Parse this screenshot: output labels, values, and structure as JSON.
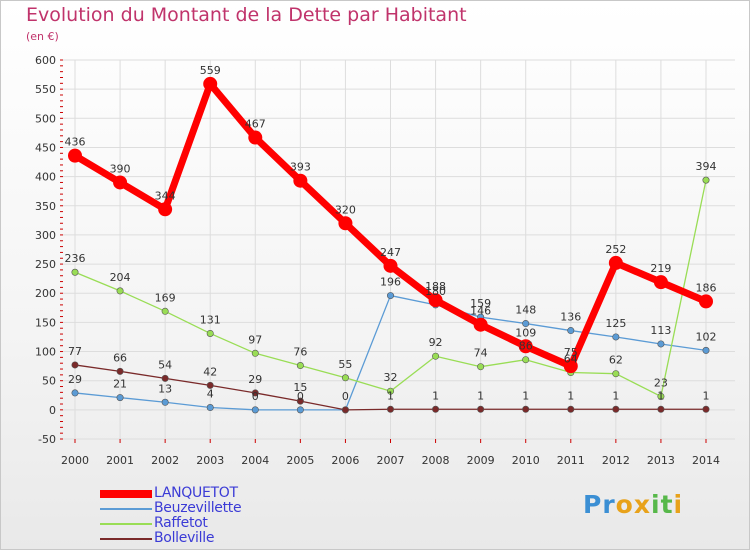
{
  "header": {
    "title": "Evolution du Montant de la Dette par Habitant",
    "subtitle": "(en €)"
  },
  "colors": {
    "title": "#c0336b",
    "legend_text": "#3b3bd6",
    "grid": "#dddddd",
    "axis_tick": "#cc0000"
  },
  "chart_data": {
    "type": "line",
    "title": "Evolution du Montant de la Dette par Habitant",
    "subtitle": "(en €)",
    "x": [
      "2000",
      "2001",
      "2002",
      "2003",
      "2004",
      "2005",
      "2006",
      "2007",
      "2008",
      "2009",
      "2010",
      "2011",
      "2012",
      "2013",
      "2014"
    ],
    "ylim": [
      -50,
      600
    ],
    "yticks": [
      -50,
      0,
      50,
      100,
      150,
      200,
      250,
      300,
      350,
      400,
      450,
      500,
      550,
      600
    ],
    "grid": true,
    "legend_position": "bottom-left",
    "series": [
      {
        "name": "LANQUETOT",
        "color": "#ff0000",
        "values": [
          436,
          390,
          344,
          559,
          467,
          393,
          320,
          247,
          188,
          146,
          109,
          75,
          252,
          219,
          186
        ],
        "labels": [
          "436",
          "390",
          "344",
          "559",
          "467",
          "393",
          "320",
          "247",
          "188",
          "146",
          "109",
          "75",
          "252",
          "219",
          "186"
        ]
      },
      {
        "name": "Beuzevillette",
        "color": "#5b9bd5",
        "values": [
          29,
          21,
          13,
          4,
          0,
          0,
          0,
          196,
          180,
          159,
          148,
          136,
          125,
          113,
          102
        ],
        "labels": [
          "29",
          "21",
          "13",
          "4",
          "0",
          "0",
          "",
          "196",
          "180",
          "159",
          "148",
          "136",
          "125",
          "113",
          "102"
        ]
      },
      {
        "name": "Raffetot",
        "color": "#99dd55",
        "values": [
          236,
          204,
          169,
          131,
          97,
          76,
          55,
          32,
          92,
          74,
          86,
          64,
          62,
          23,
          394
        ],
        "labels": [
          "236",
          "204",
          "169",
          "131",
          "97",
          "76",
          "55",
          "32",
          "92",
          "74",
          "86",
          "64",
          "62",
          "23",
          "394"
        ]
      },
      {
        "name": "Bolleville",
        "color": "#7a2a2a",
        "values": [
          77,
          66,
          54,
          42,
          29,
          15,
          0,
          1,
          1,
          1,
          1,
          1,
          1,
          1,
          1
        ],
        "labels": [
          "77",
          "66",
          "54",
          "42",
          "29",
          "15",
          "0",
          "1",
          "1",
          "1",
          "1",
          "1",
          "1",
          "1",
          "1"
        ]
      }
    ]
  },
  "logo": {
    "text": "Proxiti"
  }
}
